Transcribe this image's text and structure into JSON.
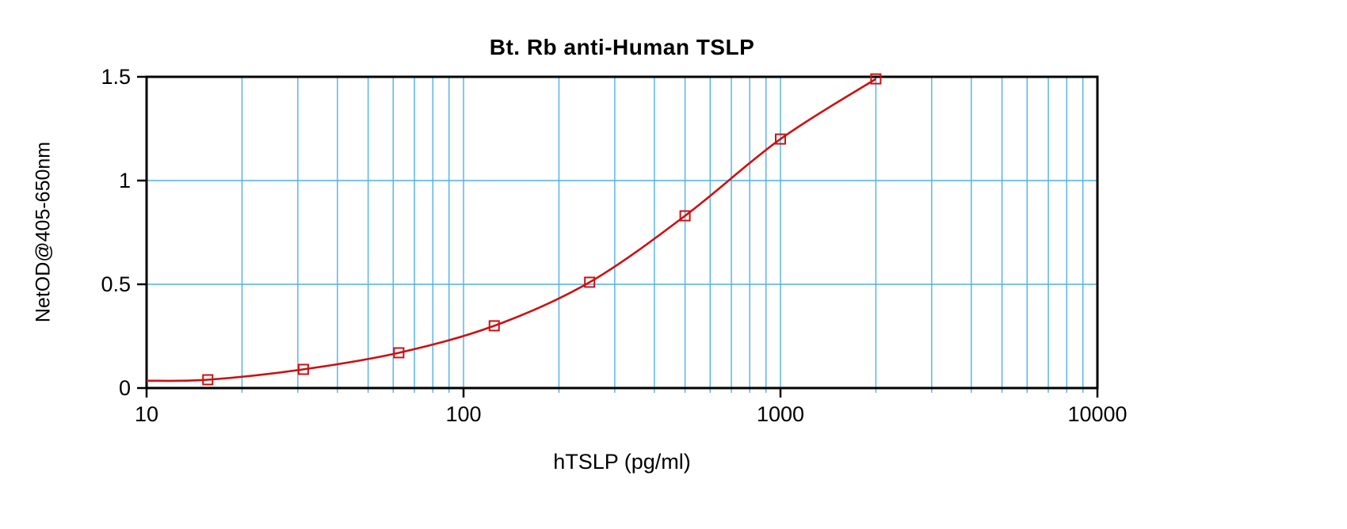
{
  "chart_data": {
    "type": "line",
    "title": "Bt. Rb anti-Human TSLP",
    "xlabel": "hTSLP (pg/ml)",
    "ylabel": "NetOD@405-650nm",
    "x_scale": "log",
    "xlim": [
      10,
      10000
    ],
    "ylim": [
      0,
      1.5
    ],
    "x_ticks": [
      10,
      100,
      1000,
      10000
    ],
    "x_tick_labels": [
      "10",
      "100",
      "1000",
      "10000"
    ],
    "y_ticks": [
      0,
      0.5,
      1,
      1.5
    ],
    "y_tick_labels": [
      "0",
      "0.5",
      "1",
      "1.5"
    ],
    "grid": {
      "color": "#4fb0e6",
      "x_minor_lines": [
        20,
        30,
        40,
        50,
        60,
        70,
        80,
        90,
        200,
        300,
        400,
        500,
        600,
        700,
        800,
        900,
        2000,
        3000,
        4000,
        5000,
        6000,
        7000,
        8000,
        9000
      ],
      "x_major_lines": [
        100,
        1000
      ],
      "y_lines": [
        0.5,
        1.0
      ],
      "legend": "none"
    },
    "axis_color": "#000000",
    "series": [
      {
        "name": "Bt. Rb anti-Human TSLP",
        "color": "#cc1111",
        "marker": "open-square",
        "curve_start": {
          "x": 10,
          "y": 0.035
        },
        "points": [
          {
            "x": 15.6,
            "y": 0.04
          },
          {
            "x": 31.25,
            "y": 0.09
          },
          {
            "x": 62.5,
            "y": 0.17
          },
          {
            "x": 125,
            "y": 0.3
          },
          {
            "x": 250,
            "y": 0.51
          },
          {
            "x": 500,
            "y": 0.83
          },
          {
            "x": 1000,
            "y": 1.2
          },
          {
            "x": 2000,
            "y": 1.49
          }
        ]
      }
    ]
  }
}
